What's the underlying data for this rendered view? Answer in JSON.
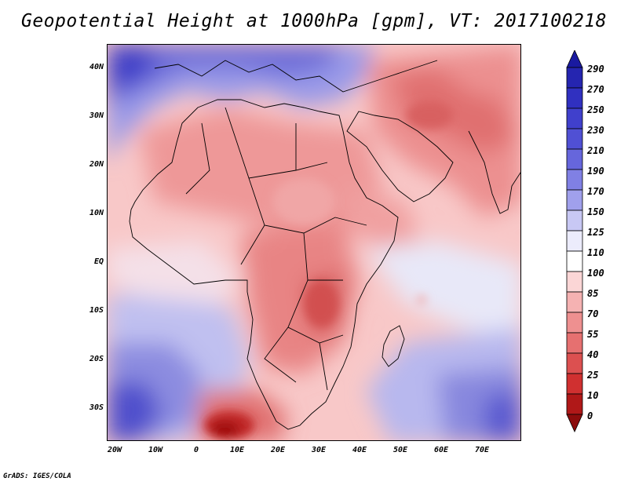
{
  "title": "Geopotential Height at 1000hPa [gpm], VT: 2017100218",
  "credit": "GrADS: IGES/COLA",
  "map": {
    "lat_labels": [
      "40N",
      "30N",
      "20N",
      "10N",
      "EQ",
      "10S",
      "20S",
      "30S"
    ],
    "lon_labels": [
      "20W",
      "10W",
      "0",
      "10E",
      "20E",
      "30E",
      "40E",
      "50E",
      "60E",
      "70E"
    ],
    "lon_range": [
      -22,
      80
    ],
    "lat_range": [
      -37,
      45
    ],
    "lat_ticks": [
      40,
      30,
      20,
      10,
      0,
      -10,
      -20,
      -30
    ],
    "lon_ticks": [
      -20,
      -10,
      0,
      10,
      20,
      30,
      40,
      50,
      60,
      70
    ]
  },
  "colorbar": {
    "levels": [
      "290",
      "270",
      "250",
      "230",
      "210",
      "190",
      "170",
      "150",
      "125",
      "110",
      "100",
      "85",
      "70",
      "55",
      "40",
      "25",
      "10",
      "0"
    ],
    "colors": [
      "#1a1aa0",
      "#2525b0",
      "#3030c0",
      "#4040cc",
      "#5050d4",
      "#6666dc",
      "#8080e4",
      "#a0a0ec",
      "#c8c8f4",
      "#ececfc",
      "#ffffff",
      "#fbd6d6",
      "#f5b2b2",
      "#ee9090",
      "#e67070",
      "#dc5050",
      "#d03030",
      "#b01818",
      "#8c0c0c"
    ]
  }
}
